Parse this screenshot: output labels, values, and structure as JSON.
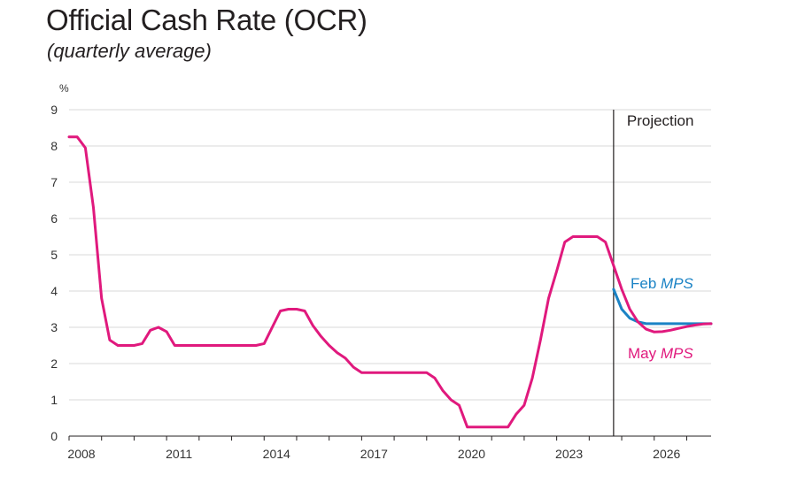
{
  "header": {
    "title": "Official Cash Rate (OCR)",
    "subtitle": "(quarterly average)"
  },
  "colors": {
    "may": "#e0197d",
    "feb": "#1b83c5",
    "grid": "#d9d9d9",
    "axis": "#231f20"
  },
  "chart_data": {
    "type": "line",
    "ylabel_unit": "%",
    "ylim": [
      0,
      9
    ],
    "yticks": [
      0,
      1,
      2,
      3,
      4,
      5,
      6,
      7,
      8,
      9
    ],
    "xlim": [
      2008,
      2027.75
    ],
    "xtick_labels": [
      "2008",
      "2011",
      "2014",
      "2017",
      "2020",
      "2023",
      "2026"
    ],
    "xtick_values": [
      2008,
      2011,
      2014,
      2017,
      2020,
      2023,
      2026
    ],
    "grid": true,
    "projection_start": 2024.75,
    "projection_label": "Projection",
    "series": [
      {
        "name": "May MPS",
        "label_plain": "May ",
        "label_italic": "MPS",
        "color": "#e0197d",
        "x": [
          2008,
          2008.25,
          2008.5,
          2008.75,
          2009,
          2009.25,
          2009.5,
          2009.75,
          2010,
          2010.25,
          2010.5,
          2010.75,
          2011,
          2011.25,
          2011.5,
          2011.75,
          2012,
          2012.25,
          2012.5,
          2012.75,
          2013,
          2013.25,
          2013.5,
          2013.75,
          2014,
          2014.25,
          2014.5,
          2014.75,
          2015,
          2015.25,
          2015.5,
          2015.75,
          2016,
          2016.25,
          2016.5,
          2016.75,
          2017,
          2017.25,
          2017.5,
          2017.75,
          2018,
          2018.25,
          2018.5,
          2018.75,
          2019,
          2019.25,
          2019.5,
          2019.75,
          2020,
          2020.25,
          2020.5,
          2020.75,
          2021,
          2021.25,
          2021.5,
          2021.75,
          2022,
          2022.25,
          2022.5,
          2022.75,
          2023,
          2023.25,
          2023.5,
          2023.75,
          2024,
          2024.25,
          2024.5,
          2024.75,
          2025,
          2025.25,
          2025.5,
          2025.75,
          2026,
          2026.25,
          2026.5,
          2026.75,
          2027,
          2027.25,
          2027.5,
          2027.75
        ],
        "values": [
          8.25,
          8.25,
          7.95,
          6.3,
          3.8,
          2.65,
          2.5,
          2.5,
          2.5,
          2.55,
          2.92,
          3.0,
          2.88,
          2.5,
          2.5,
          2.5,
          2.5,
          2.5,
          2.5,
          2.5,
          2.5,
          2.5,
          2.5,
          2.5,
          2.55,
          3.0,
          3.45,
          3.5,
          3.5,
          3.45,
          3.05,
          2.75,
          2.5,
          2.3,
          2.15,
          1.9,
          1.75,
          1.75,
          1.75,
          1.75,
          1.75,
          1.75,
          1.75,
          1.75,
          1.75,
          1.6,
          1.25,
          1.0,
          0.85,
          0.25,
          0.25,
          0.25,
          0.25,
          0.25,
          0.25,
          0.6,
          0.85,
          1.6,
          2.65,
          3.8,
          4.55,
          5.35,
          5.5,
          5.5,
          5.5,
          5.5,
          5.35,
          4.7,
          4.05,
          3.5,
          3.15,
          2.95,
          2.87,
          2.88,
          2.92,
          2.97,
          3.02,
          3.06,
          3.09,
          3.1
        ]
      },
      {
        "name": "Feb MPS",
        "label_plain": "Feb ",
        "label_italic": "MPS",
        "color": "#1b83c5",
        "x": [
          2024.75,
          2025,
          2025.25,
          2025.5,
          2025.75,
          2026,
          2026.25,
          2026.5,
          2026.75,
          2027,
          2027.25,
          2027.5,
          2027.75
        ],
        "values": [
          4.05,
          3.5,
          3.25,
          3.15,
          3.1,
          3.1,
          3.1,
          3.1,
          3.1,
          3.1,
          3.1,
          3.1,
          3.1
        ]
      }
    ]
  }
}
